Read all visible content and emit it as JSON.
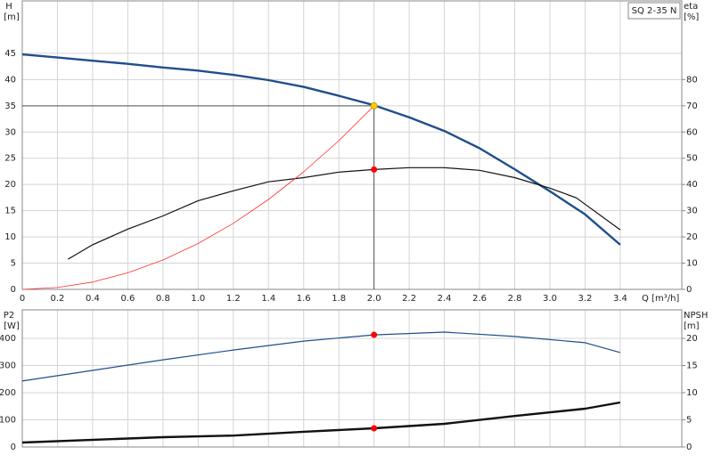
{
  "chart_data": [
    {
      "type": "line",
      "title": "SQ 2-35 N",
      "xlabel": "Q [m³/h]",
      "ylabel": [
        "H",
        "[m]"
      ],
      "y2label": [
        "eta",
        "[%]"
      ],
      "xlim": [
        0,
        3.75
      ],
      "ylim": [
        0,
        55
      ],
      "y2lim": [
        0,
        110
      ],
      "xticks": [
        0,
        0.2,
        0.4,
        0.6,
        0.8,
        {
          "value": 1,
          "label": "1.0"
        },
        1.2,
        1.4,
        1.6,
        1.8,
        {
          "value": 2,
          "label": "2.0"
        },
        2.2,
        2.4,
        2.6,
        2.8,
        {
          "value": 3,
          "label": "3.0"
        },
        3.2,
        3.4
      ],
      "yticks": [
        0,
        5,
        10,
        15,
        20,
        25,
        30,
        35,
        40,
        45
      ],
      "y2ticks": [
        0,
        10,
        20,
        30,
        40,
        50,
        60,
        70,
        80
      ],
      "grid": true,
      "series": [
        {
          "color": "#1f4e8c",
          "width": 2.4,
          "x": [
            0,
            0.2,
            0.4,
            0.6,
            0.8,
            1.0,
            1.2,
            1.4,
            1.6,
            1.8,
            2.0,
            2.2,
            2.4,
            2.6,
            2.8,
            3.0,
            3.2,
            3.4
          ],
          "values": [
            44.8,
            44.2,
            43.6,
            43.0,
            42.3,
            41.7,
            40.9,
            39.9,
            38.6,
            36.9,
            35.1,
            32.8,
            30.2,
            26.9,
            22.9,
            18.7,
            14.3,
            8.5
          ]
        },
        {
          "color": "#111111",
          "width": 1.2,
          "axis": "y2",
          "x": [
            0.26,
            0.4,
            0.6,
            0.8,
            1.0,
            1.2,
            1.4,
            1.6,
            1.8,
            2.0,
            2.2,
            2.4,
            2.6,
            2.8,
            3.0,
            3.15,
            3.4
          ],
          "values": [
            11.5,
            17,
            23,
            28,
            33.8,
            37.6,
            41,
            42.6,
            44.7,
            45.7,
            46.4,
            46.4,
            45.4,
            42.6,
            38.6,
            34.9,
            22.7
          ]
        },
        {
          "color": "#ff3030",
          "width": 0.8,
          "x": [
            0,
            0.2,
            0.4,
            0.6,
            0.8,
            1.0,
            1.2,
            1.4,
            1.6,
            1.8,
            2.0
          ],
          "values": [
            0,
            0.35,
            1.4,
            3.15,
            5.6,
            8.75,
            12.6,
            17.15,
            22.4,
            28.35,
            35
          ]
        }
      ],
      "markers": [
        {
          "x": 2.0,
          "y": 35,
          "color": "#ffcc00",
          "crosshair": true
        },
        {
          "x": 2.0,
          "y": 45.7,
          "color": "#ff0000",
          "axis": "y2"
        }
      ]
    },
    {
      "type": "line",
      "ylabel": [
        "P2",
        "[W]"
      ],
      "y2label": [
        "NPSH",
        "[m]"
      ],
      "xlim": [
        0,
        3.75
      ],
      "ylim": [
        0,
        505
      ],
      "y2lim": [
        0,
        25.25
      ],
      "yticks": [
        0,
        100,
        200,
        300,
        400
      ],
      "y2ticks": [
        0,
        5,
        10,
        15,
        20
      ],
      "grid": true,
      "series": [
        {
          "color": "#1f4e8c",
          "width": 1.2,
          "x": [
            0,
            0.4,
            0.8,
            1.2,
            1.6,
            2.0,
            2.4,
            2.8,
            3.2,
            3.4
          ],
          "values": [
            243,
            282,
            321,
            357,
            390,
            413,
            423,
            407,
            384,
            348
          ]
        },
        {
          "color": "#111111",
          "width": 2.4,
          "axis": "y2",
          "x": [
            0,
            0.8,
            1.2,
            1.6,
            2.0,
            2.4,
            2.8,
            3.2,
            3.4
          ],
          "values": [
            0.82,
            1.8,
            2.1,
            2.8,
            3.44,
            4.26,
            5.7,
            7.05,
            8.2
          ]
        }
      ],
      "markers": [
        {
          "x": 2.0,
          "y": 413,
          "color": "#ff0000"
        },
        {
          "x": 2.0,
          "y": 3.44,
          "color": "#ff0000",
          "axis": "y2"
        }
      ]
    }
  ]
}
